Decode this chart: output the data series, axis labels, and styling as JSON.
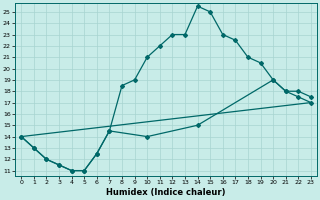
{
  "xlabel": "Humidex (Indice chaleur)",
  "background_color": "#c8ece8",
  "grid_color": "#a8d4d0",
  "line_color": "#006868",
  "xlim": [
    -0.5,
    23.5
  ],
  "ylim_min": 10.5,
  "ylim_max": 25.8,
  "yticks": [
    11,
    12,
    13,
    14,
    15,
    16,
    17,
    18,
    19,
    20,
    21,
    22,
    23,
    24,
    25
  ],
  "xticks": [
    0,
    1,
    2,
    3,
    4,
    5,
    6,
    7,
    8,
    9,
    10,
    11,
    12,
    13,
    14,
    15,
    16,
    17,
    18,
    19,
    20,
    21,
    22,
    23
  ],
  "xtick_labels": [
    "0",
    "1",
    "2",
    "3",
    "4",
    "5",
    "6",
    "7",
    "8",
    "9",
    "10",
    "11",
    "12",
    "13",
    "14",
    "15",
    "16",
    "17",
    "18",
    "19",
    "20",
    "21",
    "22",
    "23"
  ],
  "line1_x": [
    0,
    1,
    2,
    3,
    4,
    5,
    6,
    7,
    8,
    9,
    10,
    11,
    12,
    13,
    14,
    15,
    16,
    17,
    18,
    19,
    20,
    21,
    22,
    23
  ],
  "line1_y": [
    14,
    13,
    12,
    11.5,
    11,
    11,
    12.5,
    14.5,
    18.5,
    19,
    21,
    22,
    23,
    23,
    25.5,
    25,
    23,
    22.5,
    21,
    20.5,
    19,
    18,
    17.5,
    17
  ],
  "line2_x": [
    0,
    1,
    2,
    3,
    4,
    5,
    6,
    7,
    10,
    14,
    20,
    21,
    22,
    23
  ],
  "line2_y": [
    14,
    13,
    12,
    11.5,
    11,
    11,
    12.5,
    14.5,
    14,
    15,
    19,
    18,
    18,
    17.5
  ],
  "line3_x": [
    0,
    23
  ],
  "line3_y": [
    14,
    17
  ]
}
